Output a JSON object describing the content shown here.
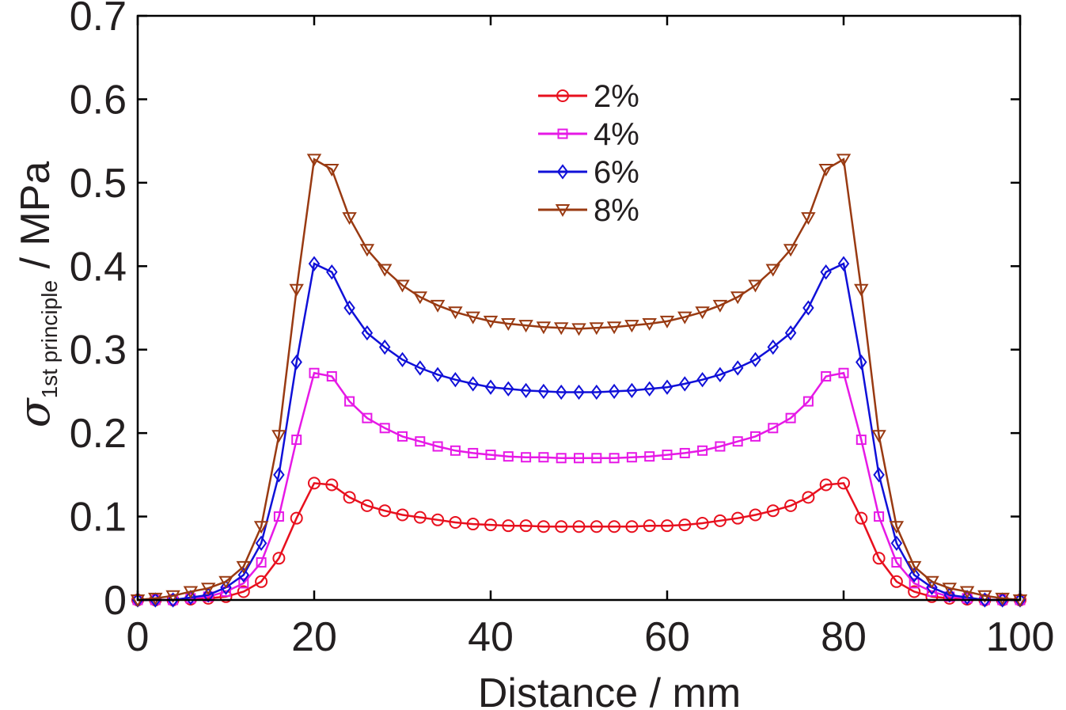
{
  "chart_data": {
    "type": "line",
    "xlabel": "Distance / mm",
    "ylabel": {
      "symbol": "σ",
      "subscript": "1st principle",
      "unit": " / MPa"
    },
    "xlim": [
      0,
      100
    ],
    "ylim": [
      0,
      0.7
    ],
    "xticks": [
      "0",
      "20",
      "40",
      "60",
      "80",
      "100"
    ],
    "yticks": [
      "0",
      "0.1",
      "0.2",
      "0.3",
      "0.4",
      "0.5",
      "0.6",
      "0.7"
    ],
    "grid": false,
    "legend_position": "top-center",
    "x": [
      0,
      2,
      4,
      6,
      8,
      10,
      12,
      14,
      16,
      18,
      20,
      22,
      24,
      26,
      28,
      30,
      32,
      34,
      36,
      38,
      40,
      42,
      44,
      46,
      48,
      50,
      52,
      54,
      56,
      58,
      60,
      62,
      64,
      66,
      68,
      70,
      72,
      74,
      76,
      78,
      80,
      82,
      84,
      86,
      88,
      90,
      92,
      94,
      96,
      98,
      100
    ],
    "series": [
      {
        "name": "2%",
        "color": "#e8101e",
        "marker": "circle",
        "values": [
          0,
          0,
          0,
          0.001,
          0.002,
          0.004,
          0.01,
          0.022,
          0.05,
          0.098,
          0.14,
          0.138,
          0.123,
          0.113,
          0.107,
          0.102,
          0.099,
          0.096,
          0.093,
          0.091,
          0.09,
          0.089,
          0.089,
          0.088,
          0.088,
          0.088,
          0.088,
          0.088,
          0.088,
          0.089,
          0.089,
          0.09,
          0.092,
          0.095,
          0.098,
          0.102,
          0.107,
          0.113,
          0.123,
          0.138,
          0.14,
          0.098,
          0.05,
          0.022,
          0.01,
          0.004,
          0.002,
          0.001,
          0,
          0,
          0
        ]
      },
      {
        "name": "4%",
        "color": "#e619e6",
        "marker": "square",
        "values": [
          0,
          0,
          0,
          0.002,
          0.004,
          0.01,
          0.02,
          0.045,
          0.1,
          0.192,
          0.272,
          0.268,
          0.238,
          0.218,
          0.206,
          0.196,
          0.19,
          0.184,
          0.179,
          0.176,
          0.174,
          0.172,
          0.171,
          0.171,
          0.17,
          0.17,
          0.17,
          0.17,
          0.171,
          0.172,
          0.174,
          0.176,
          0.179,
          0.184,
          0.19,
          0.196,
          0.206,
          0.218,
          0.238,
          0.268,
          0.272,
          0.192,
          0.1,
          0.045,
          0.02,
          0.01,
          0.004,
          0.002,
          0,
          0,
          0
        ]
      },
      {
        "name": "6%",
        "color": "#1010d8",
        "marker": "diamond",
        "values": [
          0,
          0,
          0,
          0.003,
          0.006,
          0.015,
          0.03,
          0.068,
          0.15,
          0.285,
          0.403,
          0.393,
          0.35,
          0.32,
          0.303,
          0.288,
          0.278,
          0.27,
          0.264,
          0.259,
          0.255,
          0.253,
          0.251,
          0.25,
          0.249,
          0.249,
          0.249,
          0.25,
          0.251,
          0.253,
          0.255,
          0.259,
          0.264,
          0.27,
          0.278,
          0.288,
          0.303,
          0.32,
          0.35,
          0.393,
          0.403,
          0.285,
          0.15,
          0.068,
          0.03,
          0.015,
          0.006,
          0.003,
          0,
          0,
          0
        ]
      },
      {
        "name": "8%",
        "color": "#993a12",
        "marker": "triangle-down",
        "values": [
          0,
          0.002,
          0.005,
          0.01,
          0.014,
          0.022,
          0.04,
          0.088,
          0.197,
          0.372,
          0.528,
          0.516,
          0.458,
          0.42,
          0.396,
          0.377,
          0.363,
          0.353,
          0.345,
          0.339,
          0.334,
          0.331,
          0.329,
          0.327,
          0.326,
          0.325,
          0.326,
          0.327,
          0.329,
          0.331,
          0.334,
          0.339,
          0.345,
          0.353,
          0.363,
          0.377,
          0.396,
          0.42,
          0.458,
          0.516,
          0.528,
          0.372,
          0.197,
          0.088,
          0.04,
          0.022,
          0.014,
          0.01,
          0.005,
          0.002,
          0
        ]
      }
    ]
  }
}
